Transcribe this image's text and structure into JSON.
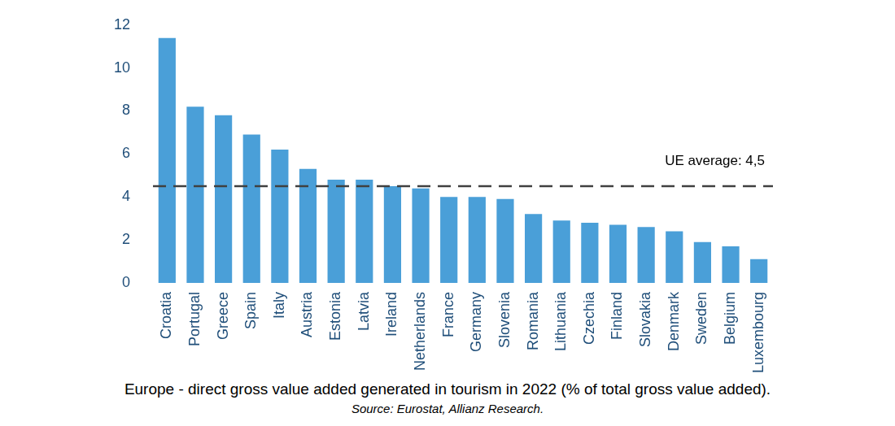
{
  "chart_data": {
    "type": "bar",
    "title": "Europe - direct gross value added generated in tourism in 2022 (% of total gross value added).",
    "subtitle": "Source: Eurostat, Allianz Research.",
    "categories": [
      "Croatia",
      "Portugal",
      "Greece",
      "Spain",
      "Italy",
      "Austria",
      "Estonia",
      "Latvia",
      "Ireland",
      "Netherlands",
      "France",
      "Germany",
      "Slovenia",
      "Romania",
      "Lithuania",
      "Czechia",
      "Finland",
      "Slovakia",
      "Denmark",
      "Sweden",
      "Belgium",
      "Luxembourg"
    ],
    "values": [
      11.4,
      8.2,
      7.8,
      6.9,
      6.2,
      5.3,
      4.8,
      4.8,
      4.5,
      4.4,
      4.0,
      4.0,
      3.9,
      3.2,
      2.9,
      2.8,
      2.7,
      2.6,
      2.4,
      1.9,
      1.7,
      1.1
    ],
    "color": "#4a9fd8",
    "ylim": [
      0,
      12
    ],
    "yticks": [
      0,
      2,
      4,
      6,
      8,
      10,
      12
    ],
    "grid": false,
    "annotations": [
      {
        "type": "hline",
        "value": 4.5,
        "label": "UE average: 4,5"
      }
    ]
  }
}
